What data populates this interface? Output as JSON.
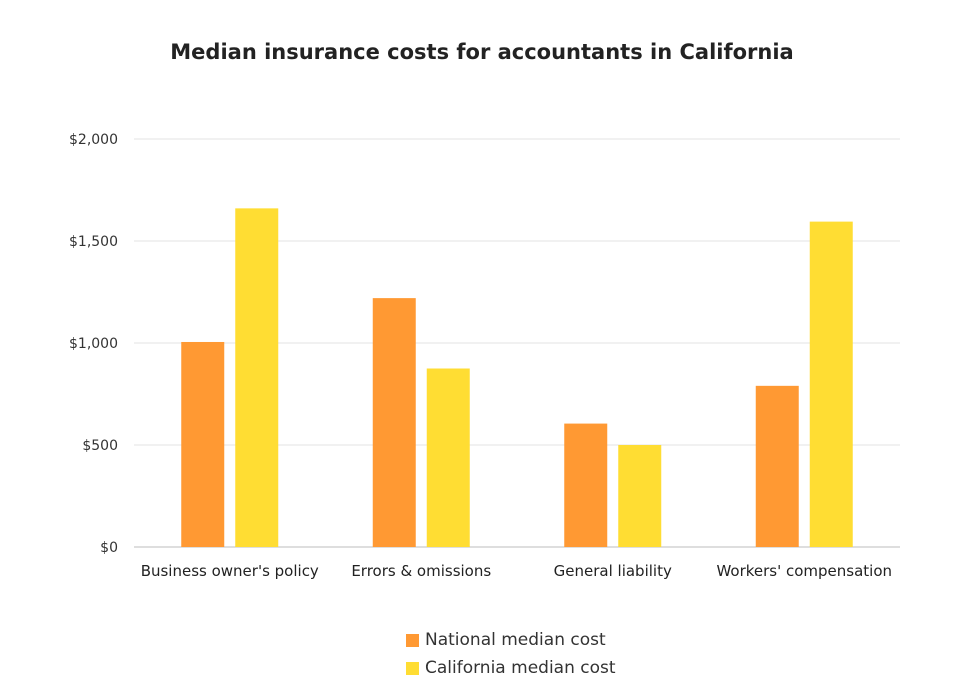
{
  "chart_data": {
    "type": "bar",
    "title": "Median insurance costs for accountants in California",
    "categories": [
      "Business owner's policy",
      "Errors & omissions",
      "General liability",
      "Workers' compensation"
    ],
    "series": [
      {
        "name": "National median cost",
        "color": "#FF9933",
        "values": [
          1005,
          1220,
          605,
          790
        ]
      },
      {
        "name": "California median cost",
        "color": "#FFDD33",
        "values": [
          1660,
          875,
          500,
          1595
        ]
      }
    ],
    "ylim": [
      0,
      2000
    ],
    "yticks": [
      0,
      500,
      1000,
      1500,
      2000
    ],
    "ytick_labels": [
      "$0",
      "$500",
      "$1,000",
      "$1,500",
      "$2,000"
    ],
    "grid": true,
    "legend_position": "bottom"
  }
}
